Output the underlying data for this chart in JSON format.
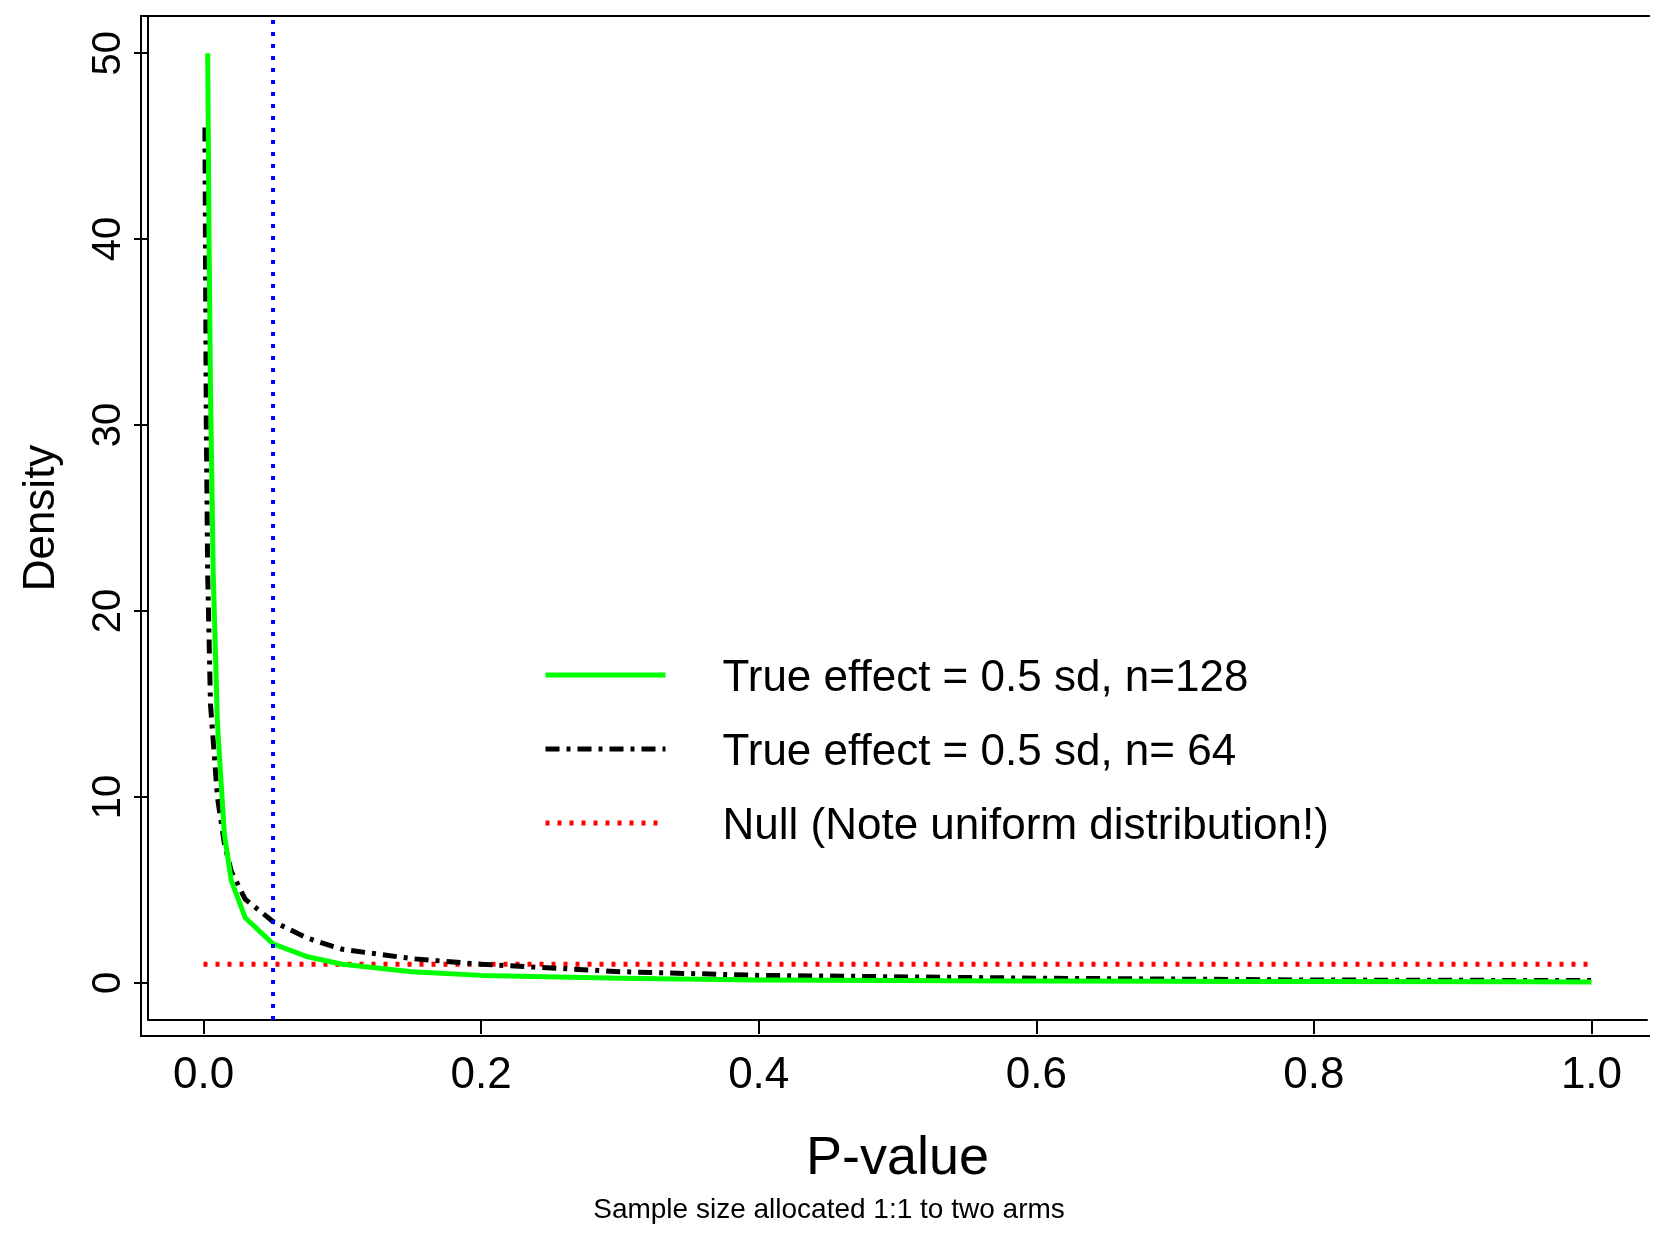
{
  "chart_data": {
    "type": "line",
    "xlabel": "P-value",
    "ylabel": "Density",
    "annotations": [
      "Sample size allocated 1:1 to two arms"
    ],
    "xlim": [
      -0.04,
      1.04
    ],
    "xticks": [
      {
        "value": 0,
        "label": "0.0"
      },
      0.2,
      0.4,
      0.6,
      0.8,
      {
        "value": 1,
        "label": "1.0"
      }
    ],
    "ylim": [
      -2,
      52
    ],
    "yticks": [
      0,
      10,
      20,
      30,
      40,
      50
    ],
    "grid": false,
    "legend": "right",
    "marker": "none",
    "series": [
      {
        "name": "True effect = 0.5 sd, n=128",
        "color": "#00ff00",
        "line_style": "solid",
        "x": [
          0.003,
          0.004,
          0.005,
          0.007,
          0.01,
          0.015,
          0.02,
          0.03,
          0.05,
          0.075,
          0.1,
          0.15,
          0.2,
          0.3,
          0.4,
          0.6,
          0.8,
          1.0
        ],
        "values": [
          50,
          40,
          32,
          22,
          14,
          8,
          5.5,
          3.5,
          2.1,
          1.4,
          1.0,
          0.6,
          0.4,
          0.25,
          0.15,
          0.1,
          0.07,
          0.05
        ]
      },
      {
        "name": "True effect = 0.5 sd, n= 64",
        "color": "#000000",
        "line_style": "dashdot",
        "x": [
          0.001,
          0.002,
          0.003,
          0.005,
          0.01,
          0.015,
          0.02,
          0.03,
          0.05,
          0.075,
          0.1,
          0.15,
          0.2,
          0.3,
          0.4,
          0.6,
          0.8,
          1.0
        ],
        "values": [
          46,
          30,
          22,
          15,
          10,
          7.5,
          6,
          4.5,
          3.3,
          2.4,
          1.8,
          1.3,
          1.0,
          0.6,
          0.4,
          0.25,
          0.15,
          0.12
        ]
      },
      {
        "name": "Null (Note uniform distribution!)",
        "color": "#ff0000",
        "line_style": "dotted",
        "x": [
          0,
          1
        ],
        "values": [
          1,
          1
        ]
      }
    ],
    "ref_lines": [
      {
        "axis": "x",
        "value": 0.05,
        "color": "#0000ff",
        "line_style": "dotted"
      }
    ]
  }
}
